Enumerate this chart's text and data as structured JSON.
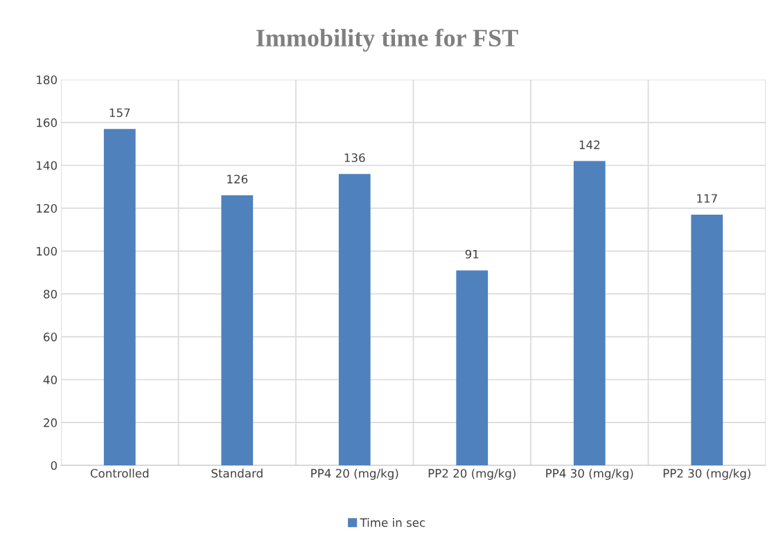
{
  "chart_data": {
    "type": "bar",
    "title": "Immobility time for FST",
    "categories": [
      "Controlled",
      "Standard",
      "PP4 20 (mg/kg)",
      "PP2 20 (mg/kg)",
      "PP4 30 (mg/kg)",
      "PP2 30 (mg/kg)"
    ],
    "series": [
      {
        "name": "Time in sec",
        "color": "#4f81bd",
        "values": [
          157,
          126,
          136,
          91,
          142,
          117
        ]
      }
    ],
    "ylim": [
      0,
      180
    ],
    "yticks": [
      0,
      20,
      40,
      60,
      80,
      100,
      120,
      140,
      160,
      180
    ],
    "grid": true,
    "legend": "bottom",
    "data_labels": true
  }
}
